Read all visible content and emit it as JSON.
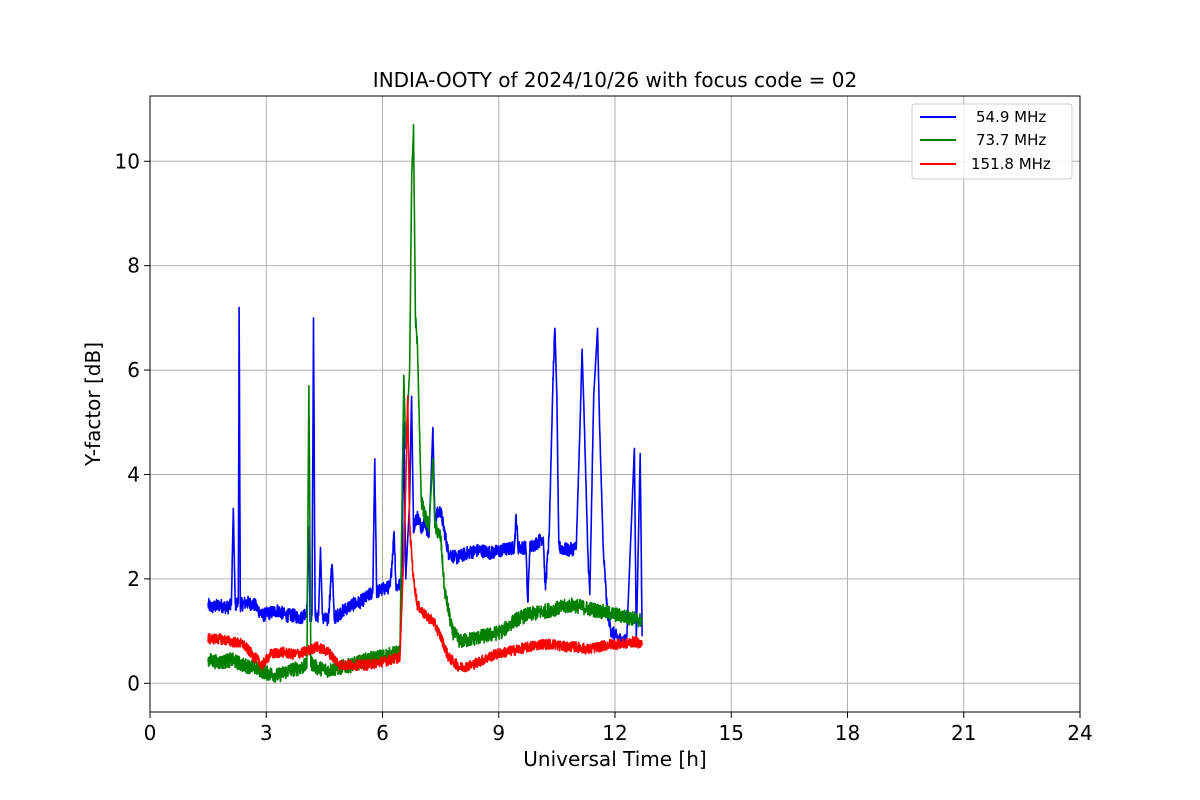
{
  "chart_data": {
    "type": "line",
    "title": "INDIA-OOTY of 2024/10/26 with focus code = 02",
    "xlabel": "Universal Time [h]",
    "ylabel": "Y-factor [dB]",
    "xlim": [
      0,
      24
    ],
    "ylim": [
      -0.55,
      11.25
    ],
    "xticks": [
      0,
      3,
      6,
      9,
      12,
      15,
      18,
      21,
      24
    ],
    "yticks": [
      0,
      2,
      4,
      6,
      8,
      10
    ],
    "grid": true,
    "legend_position": "top-right",
    "series": [
      {
        "name": "54.9 MHz",
        "color": "#0000ff",
        "points": [
          [
            1.5,
            1.5
          ],
          [
            1.6,
            1.45
          ],
          [
            1.8,
            1.5
          ],
          [
            2.0,
            1.45
          ],
          [
            2.1,
            1.5
          ],
          [
            2.15,
            3.35
          ],
          [
            2.2,
            1.5
          ],
          [
            2.28,
            1.55
          ],
          [
            2.3,
            7.2
          ],
          [
            2.33,
            1.5
          ],
          [
            2.5,
            1.55
          ],
          [
            2.7,
            1.5
          ],
          [
            2.9,
            1.3
          ],
          [
            3.1,
            1.35
          ],
          [
            3.3,
            1.4
          ],
          [
            3.5,
            1.3
          ],
          [
            3.7,
            1.3
          ],
          [
            3.9,
            1.25
          ],
          [
            4.05,
            1.4
          ],
          [
            4.1,
            3.0
          ],
          [
            4.13,
            1.3
          ],
          [
            4.18,
            1.3
          ],
          [
            4.22,
            7.0
          ],
          [
            4.26,
            1.3
          ],
          [
            4.35,
            1.3
          ],
          [
            4.4,
            2.6
          ],
          [
            4.45,
            1.25
          ],
          [
            4.6,
            1.2
          ],
          [
            4.7,
            2.35
          ],
          [
            4.75,
            1.25
          ],
          [
            5.0,
            1.4
          ],
          [
            5.2,
            1.5
          ],
          [
            5.4,
            1.55
          ],
          [
            5.6,
            1.65
          ],
          [
            5.75,
            1.75
          ],
          [
            5.8,
            4.3
          ],
          [
            5.85,
            1.75
          ],
          [
            6.0,
            1.8
          ],
          [
            6.2,
            1.85
          ],
          [
            6.3,
            2.9
          ],
          [
            6.35,
            1.85
          ],
          [
            6.5,
            1.9
          ],
          [
            6.55,
            5.0
          ],
          [
            6.6,
            2.0
          ],
          [
            6.7,
            3.5
          ],
          [
            6.75,
            5.5
          ],
          [
            6.8,
            3.0
          ],
          [
            6.9,
            3.2
          ],
          [
            7.0,
            3.0
          ],
          [
            7.1,
            3.1
          ],
          [
            7.2,
            2.8
          ],
          [
            7.3,
            4.9
          ],
          [
            7.35,
            3.2
          ],
          [
            7.5,
            3.3
          ],
          [
            7.6,
            2.9
          ],
          [
            7.7,
            2.5
          ],
          [
            7.9,
            2.4
          ],
          [
            8.2,
            2.5
          ],
          [
            8.5,
            2.55
          ],
          [
            8.8,
            2.5
          ],
          [
            9.1,
            2.55
          ],
          [
            9.4,
            2.6
          ],
          [
            9.45,
            3.2
          ],
          [
            9.5,
            2.6
          ],
          [
            9.7,
            2.6
          ],
          [
            9.75,
            1.5
          ],
          [
            9.8,
            2.6
          ],
          [
            10.0,
            2.7
          ],
          [
            10.15,
            2.8
          ],
          [
            10.2,
            1.8
          ],
          [
            10.3,
            2.8
          ],
          [
            10.4,
            5.8
          ],
          [
            10.45,
            6.8
          ],
          [
            10.5,
            5.5
          ],
          [
            10.55,
            2.6
          ],
          [
            10.8,
            2.55
          ],
          [
            11.0,
            2.6
          ],
          [
            11.1,
            5.0
          ],
          [
            11.15,
            6.4
          ],
          [
            11.2,
            5.2
          ],
          [
            11.3,
            2.5
          ],
          [
            11.35,
            1.7
          ],
          [
            11.45,
            5.5
          ],
          [
            11.55,
            6.8
          ],
          [
            11.6,
            5.0
          ],
          [
            11.7,
            2.5
          ],
          [
            11.8,
            1.4
          ],
          [
            11.9,
            1.0
          ],
          [
            12.1,
            0.85
          ],
          [
            12.3,
            0.8
          ],
          [
            12.5,
            4.5
          ],
          [
            12.55,
            0.8
          ],
          [
            12.65,
            4.4
          ],
          [
            12.7,
            0.9
          ]
        ]
      },
      {
        "name": "73.7 MHz",
        "color": "#008000",
        "points": [
          [
            1.5,
            0.45
          ],
          [
            1.8,
            0.4
          ],
          [
            2.1,
            0.45
          ],
          [
            2.4,
            0.35
          ],
          [
            2.7,
            0.3
          ],
          [
            3.0,
            0.2
          ],
          [
            3.3,
            0.15
          ],
          [
            3.6,
            0.25
          ],
          [
            3.9,
            0.3
          ],
          [
            4.05,
            0.35
          ],
          [
            4.1,
            5.7
          ],
          [
            4.15,
            0.4
          ],
          [
            4.3,
            0.3
          ],
          [
            4.6,
            0.25
          ],
          [
            4.9,
            0.3
          ],
          [
            5.2,
            0.35
          ],
          [
            5.6,
            0.45
          ],
          [
            5.9,
            0.5
          ],
          [
            6.2,
            0.55
          ],
          [
            6.45,
            0.6
          ],
          [
            6.55,
            5.9
          ],
          [
            6.6,
            4.5
          ],
          [
            6.7,
            6.0
          ],
          [
            6.75,
            9.5
          ],
          [
            6.8,
            10.7
          ],
          [
            6.85,
            7.0
          ],
          [
            6.9,
            6.5
          ],
          [
            7.0,
            3.5
          ],
          [
            7.1,
            3.2
          ],
          [
            7.2,
            3.0
          ],
          [
            7.3,
            4.3
          ],
          [
            7.35,
            3.0
          ],
          [
            7.5,
            2.8
          ],
          [
            7.6,
            1.8
          ],
          [
            7.8,
            1.0
          ],
          [
            8.0,
            0.8
          ],
          [
            8.3,
            0.85
          ],
          [
            8.6,
            0.9
          ],
          [
            8.9,
            0.95
          ],
          [
            9.1,
            1.0
          ],
          [
            9.4,
            1.2
          ],
          [
            9.7,
            1.3
          ],
          [
            10.0,
            1.35
          ],
          [
            10.3,
            1.4
          ],
          [
            10.6,
            1.45
          ],
          [
            10.9,
            1.5
          ],
          [
            11.2,
            1.45
          ],
          [
            11.5,
            1.4
          ],
          [
            11.8,
            1.35
          ],
          [
            12.1,
            1.3
          ],
          [
            12.4,
            1.25
          ],
          [
            12.7,
            1.2
          ]
        ]
      },
      {
        "name": "151.8 MHz",
        "color": "#ff0000",
        "points": [
          [
            1.5,
            0.85
          ],
          [
            1.8,
            0.85
          ],
          [
            2.1,
            0.8
          ],
          [
            2.4,
            0.75
          ],
          [
            2.7,
            0.5
          ],
          [
            2.9,
            0.35
          ],
          [
            3.1,
            0.55
          ],
          [
            3.4,
            0.6
          ],
          [
            3.7,
            0.55
          ],
          [
            4.0,
            0.6
          ],
          [
            4.3,
            0.7
          ],
          [
            4.6,
            0.6
          ],
          [
            4.9,
            0.35
          ],
          [
            5.2,
            0.35
          ],
          [
            5.6,
            0.35
          ],
          [
            5.9,
            0.4
          ],
          [
            6.2,
            0.45
          ],
          [
            6.45,
            0.5
          ],
          [
            6.55,
            2.5
          ],
          [
            6.6,
            3.8
          ],
          [
            6.65,
            5.5
          ],
          [
            6.7,
            3.0
          ],
          [
            6.8,
            2.0
          ],
          [
            6.9,
            1.5
          ],
          [
            7.1,
            1.3
          ],
          [
            7.3,
            1.2
          ],
          [
            7.5,
            0.9
          ],
          [
            7.7,
            0.5
          ],
          [
            8.0,
            0.3
          ],
          [
            8.3,
            0.35
          ],
          [
            8.6,
            0.45
          ],
          [
            8.9,
            0.55
          ],
          [
            9.2,
            0.6
          ],
          [
            9.5,
            0.65
          ],
          [
            9.8,
            0.7
          ],
          [
            10.1,
            0.75
          ],
          [
            10.4,
            0.75
          ],
          [
            10.7,
            0.7
          ],
          [
            11.0,
            0.7
          ],
          [
            11.3,
            0.65
          ],
          [
            11.6,
            0.7
          ],
          [
            11.9,
            0.75
          ],
          [
            12.2,
            0.75
          ],
          [
            12.5,
            0.8
          ],
          [
            12.7,
            0.75
          ]
        ]
      }
    ]
  }
}
